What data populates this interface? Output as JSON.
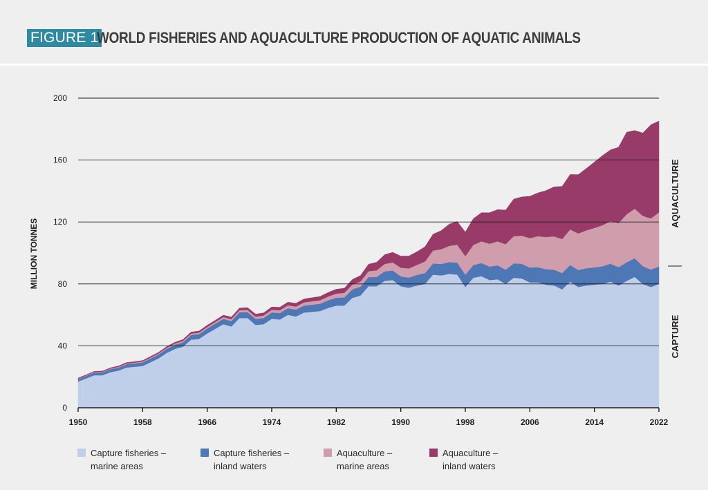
{
  "header": {
    "badge": "FIGURE 1",
    "title": "WORLD FISHERIES AND AQUACULTURE PRODUCTION OF AQUATIC ANIMALS"
  },
  "chart_data": {
    "type": "area",
    "stacked": true,
    "ylabel": "MILLION TONNES",
    "xlabel": "",
    "xlim": [
      1950,
      2022
    ],
    "ylim": [
      0,
      200
    ],
    "x_ticks": [
      1950,
      1958,
      1966,
      1974,
      1982,
      1990,
      1998,
      2006,
      2014,
      2022
    ],
    "y_ticks": [
      0,
      40,
      80,
      120,
      160,
      200
    ],
    "grid": true,
    "legend_position": "bottom",
    "right_labels": {
      "upper": "AQUACULTURE",
      "lower": "CAPTURE"
    },
    "x": [
      1950,
      1951,
      1952,
      1953,
      1954,
      1955,
      1956,
      1957,
      1958,
      1959,
      1960,
      1961,
      1962,
      1963,
      1964,
      1965,
      1966,
      1967,
      1968,
      1969,
      1970,
      1971,
      1972,
      1973,
      1974,
      1975,
      1976,
      1977,
      1978,
      1979,
      1980,
      1981,
      1982,
      1983,
      1984,
      1985,
      1986,
      1987,
      1988,
      1989,
      1990,
      1991,
      1992,
      1993,
      1994,
      1995,
      1996,
      1997,
      1998,
      1999,
      2000,
      2001,
      2002,
      2003,
      2004,
      2005,
      2006,
      2007,
      2008,
      2009,
      2010,
      2011,
      2012,
      2013,
      2014,
      2015,
      2016,
      2017,
      2018,
      2019,
      2020,
      2021,
      2022
    ],
    "series": [
      {
        "name": "Capture fisheries – marine areas",
        "color": "#bfcfea",
        "values": [
          17,
          19,
          21,
          21,
          23,
          24,
          26,
          26.5,
          27,
          29.5,
          32,
          35.5,
          38,
          39.5,
          44,
          44.5,
          48,
          51,
          54,
          52.5,
          58,
          58,
          53.5,
          54,
          57.5,
          57,
          60,
          59,
          61.5,
          62,
          62.5,
          64.5,
          66,
          66,
          71,
          72.5,
          78.5,
          78.5,
          82,
          82.5,
          78.5,
          77.5,
          79,
          80,
          86,
          85.5,
          86.5,
          86,
          78,
          84,
          85,
          82.5,
          83,
          80,
          84,
          83.5,
          81,
          81,
          79.5,
          79,
          76.5,
          81.5,
          78,
          79,
          79.5,
          80,
          81.5,
          79,
          82,
          84.5,
          80,
          78,
          80
        ]
      },
      {
        "name": "Capture fisheries – inland waters",
        "color": "#4e77b6",
        "values": [
          1.5,
          1.6,
          1.7,
          1.8,
          1.9,
          2,
          2.1,
          2.2,
          2.3,
          2.4,
          2.5,
          2.6,
          2.7,
          2.8,
          3,
          3.1,
          3.2,
          3.3,
          3.4,
          3.5,
          3.7,
          3.8,
          3.9,
          4,
          4.1,
          4.2,
          4.3,
          4.4,
          4.5,
          4.6,
          4.7,
          4.9,
          5.1,
          5.3,
          5.5,
          5.7,
          5.9,
          6,
          6.1,
          6.2,
          6.4,
          6.6,
          6.8,
          7,
          7.2,
          7.4,
          7.6,
          7.8,
          8,
          8.2,
          8.5,
          8.7,
          9,
          9.2,
          9.3,
          9.5,
          9.6,
          9.8,
          10,
          10.2,
          10.5,
          10.7,
          11,
          11.1,
          11.2,
          11.4,
          11.6,
          11.8,
          12,
          12.1,
          11.5,
          11.3,
          11.2
        ]
      },
      {
        "name": "Aquaculture – marine areas",
        "color": "#cf9dab",
        "values": [
          0.3,
          0.3,
          0.4,
          0.4,
          0.4,
          0.5,
          0.5,
          0.5,
          0.6,
          0.6,
          0.7,
          0.7,
          0.8,
          0.9,
          0.9,
          1,
          1,
          1.1,
          1.2,
          1.3,
          1.3,
          1.4,
          1.5,
          1.6,
          1.7,
          1.8,
          1.9,
          2,
          2.1,
          2.2,
          2.3,
          2.5,
          2.7,
          2.9,
          3.1,
          3.4,
          3.8,
          4.3,
          4.8,
          5.2,
          5.6,
          5.9,
          6.5,
          7.5,
          8.4,
          9.5,
          10.5,
          11.5,
          12,
          13,
          14,
          14.8,
          15.5,
          16.5,
          17.5,
          18.2,
          19,
          20,
          20.8,
          21.5,
          22,
          23,
          23.6,
          24.5,
          25.5,
          26.5,
          27.5,
          28.5,
          31,
          32,
          32.5,
          33,
          35
        ]
      },
      {
        "name": "Aquaculture – inland waters",
        "color": "#993b68",
        "values": [
          0.4,
          0.4,
          0.4,
          0.5,
          0.5,
          0.5,
          0.6,
          0.6,
          0.6,
          0.7,
          0.7,
          0.8,
          0.8,
          0.9,
          1,
          1,
          1.1,
          1.1,
          1.2,
          1.3,
          1.4,
          1.5,
          1.6,
          1.7,
          1.8,
          1.9,
          2,
          2.1,
          2.2,
          2.3,
          2.4,
          2.6,
          2.8,
          3,
          3.3,
          3.8,
          4.5,
          5.2,
          6,
          6.5,
          7.5,
          8,
          8.5,
          9.5,
          10.5,
          12,
          14,
          15,
          15.5,
          17,
          18.5,
          20,
          20.5,
          22,
          24,
          25,
          27,
          28,
          30,
          32,
          34,
          35.5,
          38,
          40,
          42.5,
          45,
          46,
          49,
          53,
          50.5,
          53.5,
          60.5,
          59
        ]
      }
    ]
  },
  "legend": [
    {
      "line1": "Capture fisheries –",
      "line2": "marine areas",
      "color": "#bfcfea"
    },
    {
      "line1": "Capture fisheries –",
      "line2": "inland waters",
      "color": "#4e77b6"
    },
    {
      "line1": "Aquaculture –",
      "line2": "marine areas",
      "color": "#cf9dab"
    },
    {
      "line1": "Aquaculture –",
      "line2": "inland waters",
      "color": "#993b68"
    }
  ]
}
